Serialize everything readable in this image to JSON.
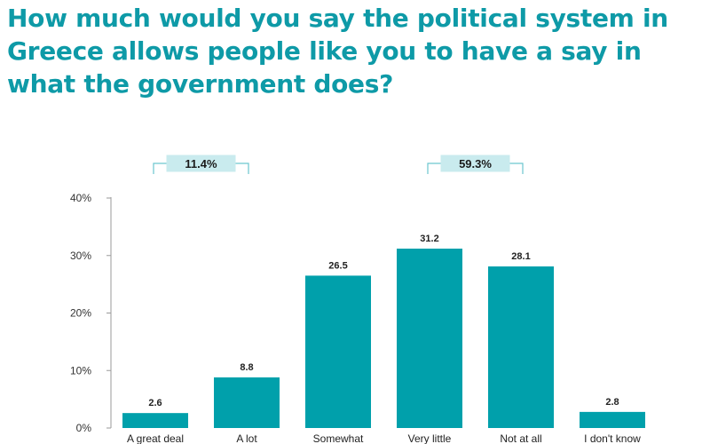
{
  "title": "How much would you say the political system in Greece allows people like you to have a say in what the government does?",
  "colors": {
    "bar": "#00a0ab",
    "title": "#0e9aa7",
    "group_box": "#c9ebee",
    "group_line": "#6cc6cf"
  },
  "chart_data": {
    "type": "bar",
    "categories": [
      "A great deal",
      "A lot",
      "Somewhat",
      "Very little",
      "Not at all",
      "I don't know"
    ],
    "values": [
      2.6,
      8.8,
      26.5,
      31.2,
      28.1,
      2.8
    ],
    "value_labels": [
      "2.6",
      "8.8",
      "26.5",
      "31.2",
      "28.1",
      "2.8"
    ],
    "ylim": [
      0,
      40
    ],
    "yticks": [
      0,
      10,
      20,
      30,
      40
    ],
    "ytick_labels": [
      "0%",
      "10%",
      "20%",
      "30%",
      "40%"
    ],
    "grid": false,
    "groups": [
      {
        "label": "11.4%",
        "from": 0,
        "to": 1
      },
      {
        "label": "59.3%",
        "from": 3,
        "to": 4
      }
    ]
  }
}
